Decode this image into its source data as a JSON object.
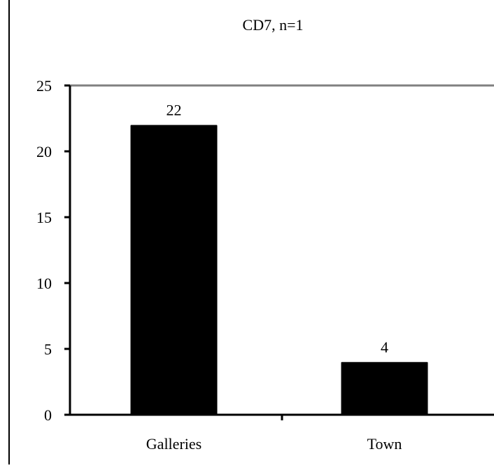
{
  "chart_data": {
    "type": "bar",
    "title": "CD7, n=1",
    "categories": [
      "Galleries",
      "Town"
    ],
    "values": [
      22,
      4
    ],
    "data_labels": [
      "22",
      "4"
    ],
    "xlabel": "",
    "ylabel": "",
    "ylim": [
      0,
      25
    ],
    "yticks": [
      0,
      5,
      10,
      15,
      20,
      25
    ],
    "grid": false,
    "legend": "none",
    "bar_color": "#000000",
    "top_line_color": "#808080"
  }
}
